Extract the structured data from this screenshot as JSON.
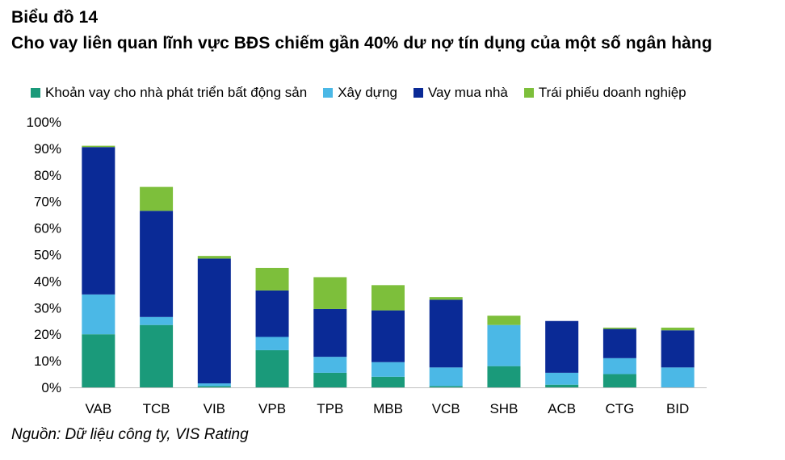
{
  "header": {
    "chart_number": "Biểu đồ 14",
    "title": "Cho vay liên quan lĩnh vực BĐS chiếm gần 40% dư nợ tín dụng của một số ngân hàng"
  },
  "footer": {
    "source": "Nguồn: Dữ liệu công ty, VIS Rating"
  },
  "colors": {
    "developer": "#1a9a7a",
    "construction": "#4bb8e6",
    "mortgage": "#0a2a96",
    "bonds": "#7dbf3b",
    "axis": "#bfbfbf"
  },
  "chart_data": {
    "type": "bar",
    "stacked": true,
    "title": "Cho vay liên quan lĩnh vực BĐS chiếm gần 40% dư nợ tín dụng của một số ngân hàng",
    "xlabel": "",
    "ylabel": "",
    "ylim": [
      0,
      100
    ],
    "ytick_values": [
      0,
      10,
      20,
      30,
      40,
      50,
      60,
      70,
      80,
      90,
      100
    ],
    "ytick_labels": [
      "0%",
      "10%",
      "20%",
      "30%",
      "40%",
      "50%",
      "60%",
      "70%",
      "80%",
      "90%",
      "100%"
    ],
    "legend_position": "top",
    "categories": [
      "VAB",
      "TCB",
      "VIB",
      "VPB",
      "TPB",
      "MBB",
      "VCB",
      "SHB",
      "ACB",
      "CTG",
      "BID"
    ],
    "series": [
      {
        "name": "Khoản vay cho nhà phát triển bất động sản",
        "color_key": "developer",
        "values": [
          20,
          23.5,
          0.5,
          14,
          5.5,
          4,
          0.5,
          8,
          1,
          5,
          0
        ]
      },
      {
        "name": "Xây dựng",
        "color_key": "construction",
        "values": [
          15,
          3,
          1,
          5,
          6,
          5.5,
          7,
          15.5,
          4.5,
          6,
          7.5
        ]
      },
      {
        "name": "Vay mua nhà",
        "color_key": "mortgage",
        "values": [
          55.5,
          40,
          47,
          17.5,
          18,
          19.5,
          25.5,
          0,
          19.5,
          11,
          14
        ]
      },
      {
        "name": "Trái phiếu doanh nghiệp",
        "color_key": "bonds",
        "values": [
          0.5,
          9,
          1,
          8.5,
          12,
          9.5,
          1,
          3.5,
          0,
          0.5,
          1
        ]
      }
    ]
  }
}
